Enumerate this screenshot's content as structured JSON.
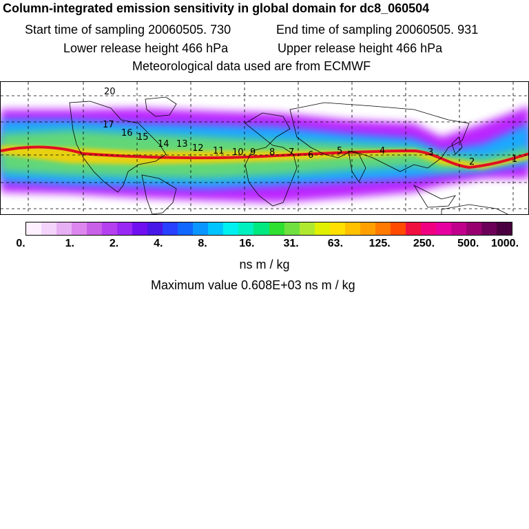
{
  "header": {
    "title": "Column-integrated emission sensitivity in global domain for dc8_060504",
    "start_time": "Start time of sampling 20060505.   730",
    "end_time": "End time of sampling 20060505.   931",
    "lower_release": "Lower release height  466 hPa",
    "upper_release": "Upper release height  466 hPa",
    "met_data": "Meteorological data used are from ECMWF"
  },
  "map": {
    "background": "#ffffff",
    "trajectory_labels": [
      "20",
      "17",
      "16",
      "15",
      "14",
      "13",
      "12",
      "11",
      "10",
      "9",
      "8",
      "7",
      "6",
      "5",
      "4",
      "3",
      "2",
      "1"
    ],
    "band_colors": {
      "outer": "#b000ff",
      "mid": "#00c0ff",
      "inner": "#70e060",
      "core": "#ffd000",
      "hot": "#e01020"
    }
  },
  "colorbar": {
    "colors": [
      "#fff0ff",
      "#f4d4fa",
      "#e8b0f4",
      "#dc86ee",
      "#c860e8",
      "#b440f0",
      "#9a28f4",
      "#7010f0",
      "#4818e8",
      "#2840ff",
      "#1068ff",
      "#0a96ff",
      "#00c4ff",
      "#00f0f0",
      "#00f0c0",
      "#00e880",
      "#30e030",
      "#70e040",
      "#b0e830",
      "#e0f000",
      "#ffe000",
      "#ffc000",
      "#ffa000",
      "#ff7a00",
      "#ff4a00",
      "#f01040",
      "#f00080",
      "#e600a0",
      "#c0008c",
      "#980070",
      "#6c0058",
      "#4a0040"
    ],
    "tick_labels": [
      "0.",
      "1.",
      "2.",
      "4.",
      "8.",
      "16.",
      "31.",
      "63.",
      "125.",
      "250.",
      "500.",
      "1000."
    ],
    "unit": "ns m / kg"
  },
  "footer": {
    "max_value": "Maximum value  0.608E+03 ns m / kg"
  }
}
